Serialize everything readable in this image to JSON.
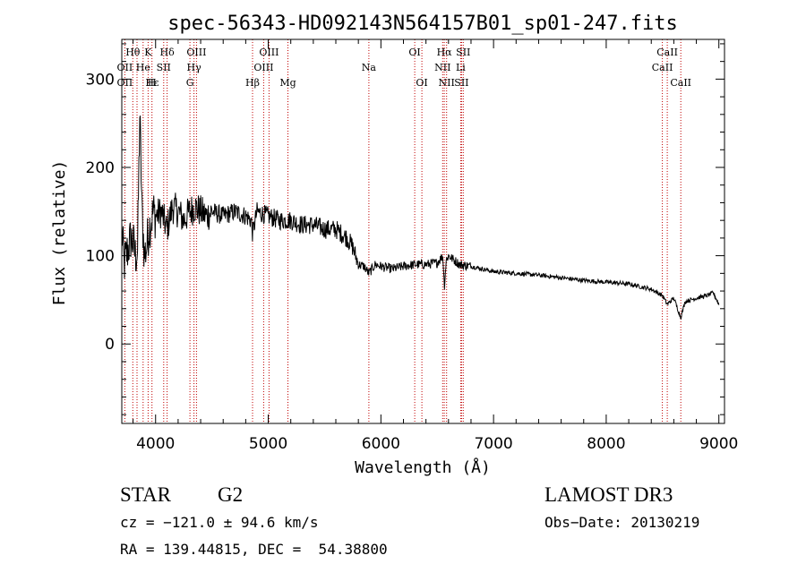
{
  "chart_data": {
    "type": "line",
    "title": "spec-56343-HD092143N564157B01_sp01-247.fits",
    "xlabel": "Wavelength (Å)",
    "ylabel": "Flux (relative)",
    "xlim": [
      3700,
      9050
    ],
    "ylim": [
      -90,
      345
    ],
    "x_ticks": [
      4000,
      5000,
      6000,
      7000,
      8000,
      9000
    ],
    "y_ticks": [
      0,
      100,
      200,
      300
    ],
    "series": [
      {
        "name": "flux",
        "x": [
          3700,
          3720,
          3740,
          3760,
          3780,
          3800,
          3820,
          3840,
          3860,
          3880,
          3900,
          3920,
          3940,
          3960,
          3980,
          4000,
          4050,
          4100,
          4150,
          4200,
          4250,
          4300,
          4350,
          4400,
          4450,
          4500,
          4600,
          4700,
          4800,
          4850,
          4861,
          4900,
          5000,
          5100,
          5200,
          5300,
          5400,
          5500,
          5600,
          5700,
          5750,
          5800,
          5850,
          5893,
          5950,
          6000,
          6100,
          6200,
          6300,
          6400,
          6500,
          6550,
          6563,
          6580,
          6600,
          6700,
          6800,
          6900,
          7000,
          7200,
          7400,
          7600,
          7800,
          8000,
          8200,
          8400,
          8498,
          8542,
          8600,
          8662,
          8700,
          8800,
          8900,
          8950,
          9000
        ],
        "y": [
          130,
          90,
          100,
          110,
          120,
          115,
          100,
          105,
          260,
          150,
          100,
          110,
          130,
          140,
          150,
          145,
          150,
          130,
          155,
          150,
          140,
          150,
          155,
          150,
          145,
          150,
          145,
          150,
          145,
          140,
          125,
          150,
          145,
          140,
          140,
          135,
          135,
          130,
          130,
          120,
          110,
          90,
          88,
          80,
          90,
          88,
          85,
          88,
          90,
          90,
          92,
          100,
          65,
          95,
          100,
          90,
          88,
          85,
          82,
          80,
          78,
          75,
          72,
          70,
          68,
          62,
          55,
          45,
          52,
          30,
          48,
          52,
          55,
          58,
          45
        ]
      }
    ],
    "line_labels": [
      {
        "text": "Hθ",
        "wavelength": 3798,
        "row": 1
      },
      {
        "text": "K",
        "wavelength": 3934,
        "row": 1
      },
      {
        "text": "Hδ",
        "wavelength": 4102,
        "row": 1
      },
      {
        "text": "OIII",
        "wavelength": 4363,
        "row": 1
      },
      {
        "text": "OIII",
        "wavelength": 5007,
        "row": 1
      },
      {
        "text": "OI",
        "wavelength": 6300,
        "row": 1
      },
      {
        "text": "Hα",
        "wavelength": 6563,
        "row": 1
      },
      {
        "text": "SII",
        "wavelength": 6731,
        "row": 1
      },
      {
        "text": "CaII",
        "wavelength": 8542,
        "row": 1
      },
      {
        "text": "OII",
        "wavelength": 3727,
        "row": 2
      },
      {
        "text": "He",
        "wavelength": 3889,
        "row": 2
      },
      {
        "text": "SII",
        "wavelength": 4072,
        "row": 2
      },
      {
        "text": "Hγ",
        "wavelength": 4341,
        "row": 2
      },
      {
        "text": "OIII",
        "wavelength": 4959,
        "row": 2
      },
      {
        "text": "Na",
        "wavelength": 5893,
        "row": 2
      },
      {
        "text": "NII",
        "wavelength": 6548,
        "row": 2
      },
      {
        "text": "Li",
        "wavelength": 6708,
        "row": 2
      },
      {
        "text": "CaII",
        "wavelength": 8498,
        "row": 2
      },
      {
        "text": "OII",
        "wavelength": 3727,
        "row": 3
      },
      {
        "text": "Hε",
        "wavelength": 3970,
        "row": 3
      },
      {
        "text": "H",
        "wavelength": 3968,
        "row": 3
      },
      {
        "text": "G",
        "wavelength": 4305,
        "row": 3
      },
      {
        "text": "Hβ",
        "wavelength": 4861,
        "row": 3
      },
      {
        "text": "Mg",
        "wavelength": 5175,
        "row": 3
      },
      {
        "text": "OI",
        "wavelength": 6364,
        "row": 3
      },
      {
        "text": "NII",
        "wavelength": 6583,
        "row": 3
      },
      {
        "text": "SII",
        "wavelength": 6716,
        "row": 3
      },
      {
        "text": "CaII",
        "wavelength": 8662,
        "row": 3
      }
    ],
    "line_markers": [
      3727,
      3798,
      3835,
      3889,
      3934,
      3968,
      4072,
      4102,
      4305,
      4341,
      4363,
      4861,
      4959,
      5007,
      5175,
      5893,
      6300,
      6364,
      6548,
      6563,
      6583,
      6708,
      6716,
      6731,
      8498,
      8542,
      8662
    ]
  },
  "info": {
    "object_class": "STAR",
    "subclass": "G2",
    "survey": "LAMOST DR3",
    "velocity": "cz = −121.0 ± 94.6 km/s",
    "obs_date": "Obs−Date: 20130219",
    "coords": "RA = 139.44815, DEC =  54.38800"
  },
  "colors": {
    "axes": "#000000",
    "spectrum": "#000000",
    "marker_lines": "#c00000"
  }
}
